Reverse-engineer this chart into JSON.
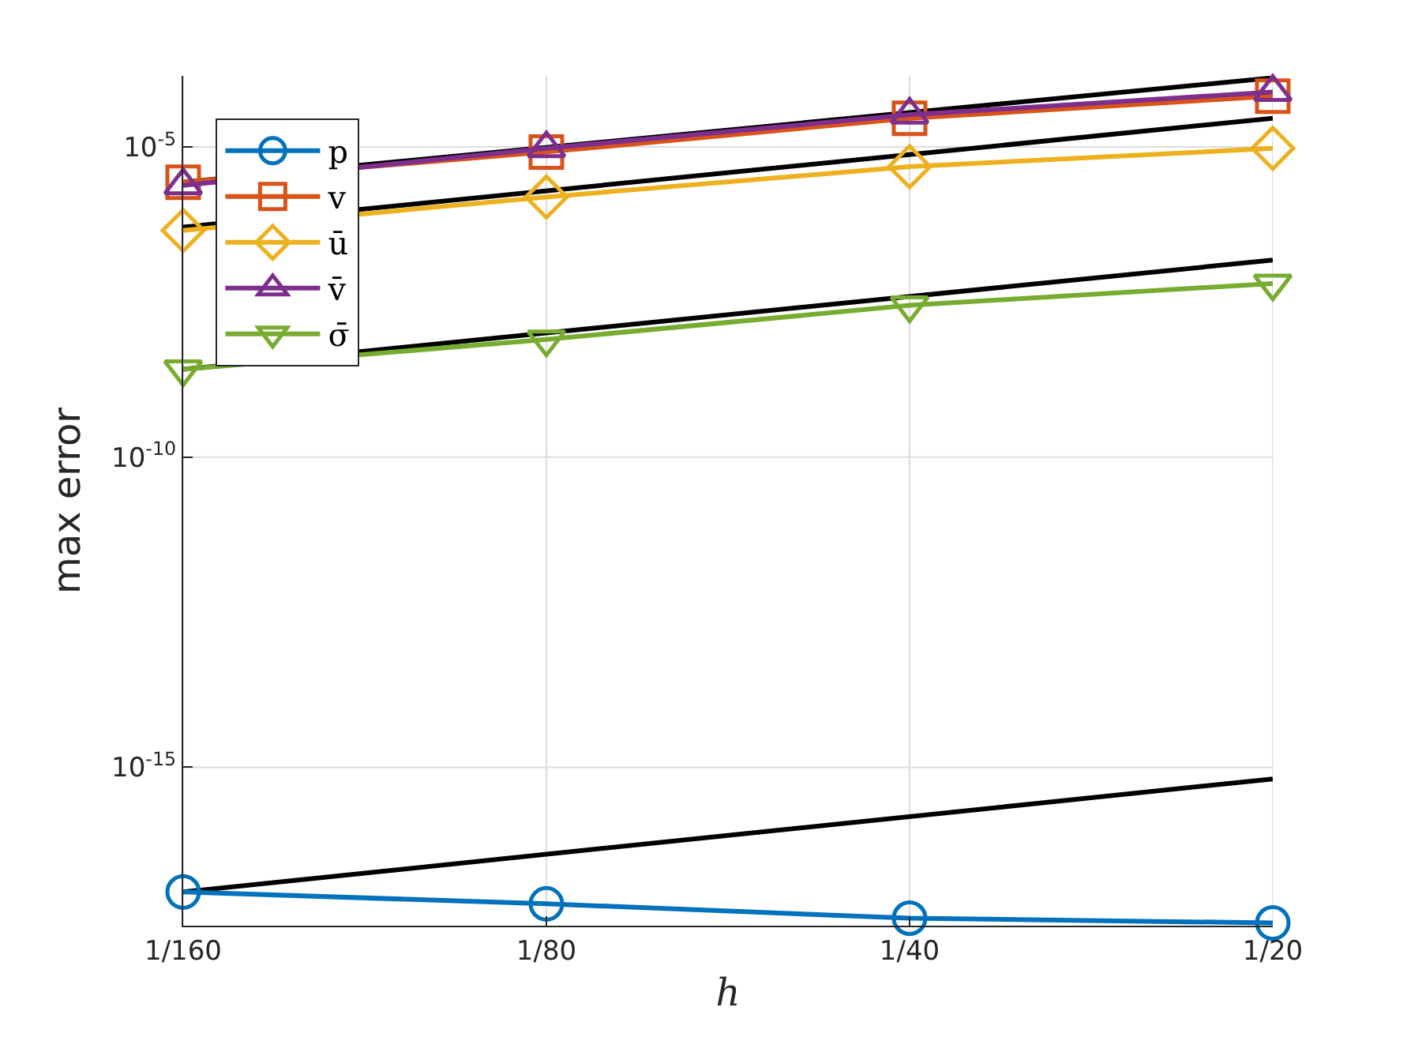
{
  "chart_data": {
    "type": "line",
    "xlabel": "h",
    "ylabel": "max error",
    "log": "y",
    "grid": true,
    "legend": "top left",
    "line_style": "solid",
    "categories": [
      "1/160",
      "1/80",
      "1/40",
      "1/20"
    ],
    "ylim": [
      2.8e-18,
      0.00014
    ],
    "yticks": [
      {
        "value": 1e-15,
        "label": "10$^{-15}$"
      },
      {
        "value": 1e-10,
        "label": "10$^{-10}$"
      },
      {
        "value": 1e-05,
        "label": "10$^{-5}$"
      }
    ],
    "series": [
      {
        "type": "line",
        "color": "#000000",
        "marker": "none",
        "x": [
          "1/160",
          "1/20"
        ],
        "values": [
          2.7e-06,
          0.00013
        ]
      },
      {
        "type": "line",
        "color": "#000000",
        "marker": "none",
        "x": [
          "1/160",
          "1/20"
        ],
        "values": [
          5.1e-07,
          2.9e-05
        ]
      },
      {
        "type": "line",
        "color": "#000000",
        "marker": "none",
        "x": [
          "1/160",
          "1/20"
        ],
        "values": [
          2.6e-09,
          1.5e-07
        ]
      },
      {
        "type": "line",
        "color": "#000000",
        "marker": "none",
        "x": [
          "1/160",
          "1/20"
        ],
        "values": [
          9.8e-18,
          6.5e-16
        ]
      },
      {
        "name": "p",
        "color": "#0072bd",
        "marker": "circle",
        "values": [
          9.8e-18,
          6.3e-18,
          3.7e-18,
          3.1e-18
        ]
      },
      {
        "name": "v",
        "color": "#d95319",
        "marker": "square",
        "values": [
          2.7e-06,
          8.3e-06,
          2.9e-05,
          6.6e-05
        ]
      },
      {
        "name": "ū",
        "color": "#edb120",
        "marker": "diamond",
        "values": [
          4.5e-07,
          1.56e-06,
          4.8e-06,
          9.5e-06
        ]
      },
      {
        "name": "v̄",
        "color": "#7e2f8e",
        "marker": "triangle",
        "values": [
          2.4e-06,
          9.5e-06,
          3.3e-05,
          7.7e-05
        ]
      },
      {
        "name": "σ̄",
        "color": "#77ac30",
        "marker": "triangle-down",
        "values": [
          2.6e-09,
          7.9e-09,
          2.8e-08,
          6.3e-08
        ]
      }
    ]
  }
}
